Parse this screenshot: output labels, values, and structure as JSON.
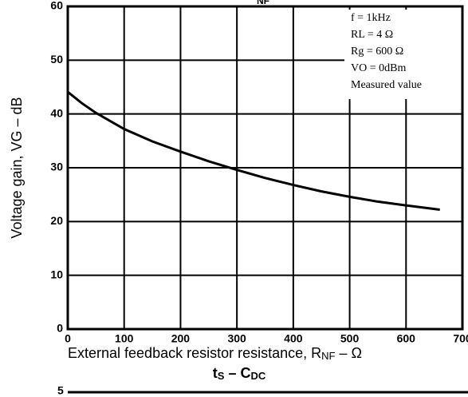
{
  "chart_data": {
    "type": "line",
    "title": "NF",
    "x_label_parts": [
      "External feedback resistor resistance, R",
      "NF",
      " – Ω"
    ],
    "y_label": "Voltage gain, VG – dB",
    "x": [
      0,
      25,
      50,
      100,
      150,
      200,
      250,
      300,
      350,
      400,
      450,
      500,
      550,
      600,
      660
    ],
    "series": [
      {
        "name": "Voltage gain",
        "color": "#000000",
        "values": [
          44.1,
          42,
          40.2,
          37.2,
          34.9,
          33,
          31.2,
          29.6,
          28.1,
          26.8,
          25.6,
          24.6,
          23.7,
          23,
          22.2
        ]
      }
    ],
    "xlim": [
      0,
      700
    ],
    "xticks": [
      0,
      100,
      200,
      300,
      400,
      500,
      600,
      700
    ],
    "ylim": [
      0,
      60
    ],
    "yticks": [
      0,
      10,
      20,
      30,
      40,
      50,
      60
    ],
    "grid": true,
    "annotations": [
      "f = 1kHz",
      "RL = 4 Ω",
      "Rg = 600 Ω",
      "VO = 0dBm",
      "Measured value"
    ],
    "next_chart": {
      "title_parts": [
        "t",
        "S",
        " – C",
        "DC"
      ],
      "ytick_top": 5
    }
  }
}
